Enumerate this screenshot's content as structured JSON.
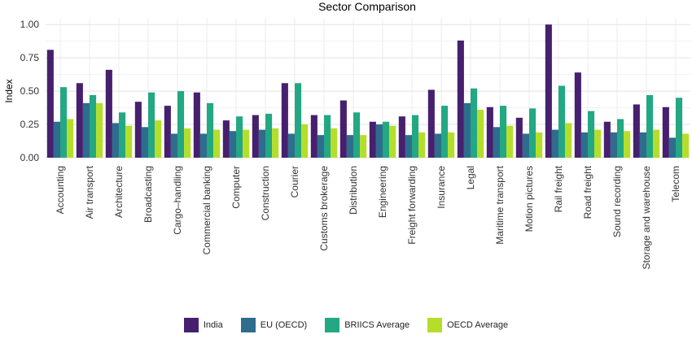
{
  "chart_data": {
    "type": "bar",
    "title": "Sector Comparison",
    "xlabel": "",
    "ylabel": "Index",
    "ylim": [
      0,
      1.05
    ],
    "yticks": [
      "0.00",
      "0.25",
      "0.50",
      "0.75",
      "1.00"
    ],
    "grid": true,
    "legend_position": "bottom",
    "categories": [
      "Accounting",
      "Air transport",
      "Architecture",
      "Broadcasting",
      "Cargo–handling",
      "Commercial banking",
      "Computer",
      "Construction",
      "Courier",
      "Customs brokerage",
      "Distribution",
      "Engineering",
      "Freight forwarding",
      "Insurance",
      "Legal",
      "Maritime transport",
      "Motion pictures",
      "Rail freight",
      "Road freight",
      "Sound recording",
      "Storage and warehouse",
      "Telecom"
    ],
    "series": [
      {
        "name": "India",
        "color": "#46206e",
        "values": [
          0.81,
          0.56,
          0.66,
          0.42,
          0.39,
          0.49,
          0.28,
          0.32,
          0.56,
          0.32,
          0.43,
          0.27,
          0.31,
          0.51,
          0.88,
          0.38,
          0.3,
          1.0,
          0.64,
          0.27,
          0.4,
          0.38
        ]
      },
      {
        "name": "EU (OECD)",
        "color": "#2e6d8e",
        "values": [
          0.27,
          0.41,
          0.26,
          0.23,
          0.18,
          0.18,
          0.2,
          0.21,
          0.18,
          0.17,
          0.17,
          0.25,
          0.17,
          0.18,
          0.41,
          0.23,
          0.18,
          0.21,
          0.19,
          0.19,
          0.19,
          0.15
        ]
      },
      {
        "name": "BRIICS Average",
        "color": "#23a883",
        "values": [
          0.53,
          0.47,
          0.34,
          0.49,
          0.5,
          0.41,
          0.31,
          0.33,
          0.56,
          0.32,
          0.34,
          0.27,
          0.32,
          0.39,
          0.52,
          0.39,
          0.37,
          0.54,
          0.35,
          0.29,
          0.47,
          0.45
        ]
      },
      {
        "name": "OECD Average",
        "color": "#b5de2b",
        "values": [
          0.29,
          0.41,
          0.24,
          0.28,
          0.22,
          0.21,
          0.21,
          0.22,
          0.25,
          0.22,
          0.17,
          0.24,
          0.19,
          0.19,
          0.36,
          0.24,
          0.19,
          0.26,
          0.21,
          0.2,
          0.21,
          0.18
        ]
      }
    ]
  }
}
